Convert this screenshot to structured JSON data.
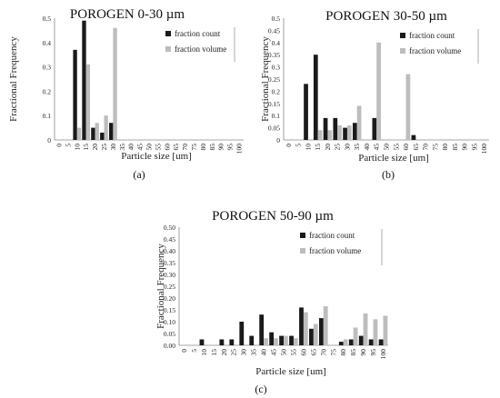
{
  "figure": {
    "captions": [
      "(a)",
      "(b)",
      "(c)"
    ]
  },
  "legend": {
    "count_label": "fraction count",
    "volume_label": "fraction volume"
  },
  "colors": {
    "count": "#1a1a1a",
    "volume": "#bdbdbd",
    "axis": "#888888"
  },
  "chart_data": [
    {
      "type": "bar",
      "title": "POROGEN 0-30 µm",
      "xlabel": "Particle size [um]",
      "ylabel": "Fractional Frequency",
      "ylim": [
        0,
        0.5
      ],
      "yticks": [
        "0",
        "0.1",
        "0.2",
        "0.3",
        "0.4",
        "0.5"
      ],
      "legend_position": "top-right",
      "categories": [
        "0",
        "5",
        "10",
        "15",
        "20",
        "25",
        "30",
        "35",
        "40",
        "45",
        "50",
        "55",
        "60",
        "65",
        "70",
        "75",
        "80",
        "85",
        "90",
        "95",
        "100"
      ],
      "series": [
        {
          "name": "fraction count",
          "values": [
            0,
            0,
            0.37,
            0.49,
            0.05,
            0.03,
            0.07,
            0,
            0,
            0,
            0,
            0,
            0,
            0,
            0,
            0,
            0,
            0,
            0,
            0,
            0
          ]
        },
        {
          "name": "fraction volume",
          "values": [
            0,
            0,
            0.05,
            0.31,
            0.07,
            0.1,
            0.46,
            0,
            0,
            0,
            0,
            0,
            0,
            0,
            0,
            0,
            0,
            0,
            0,
            0,
            0
          ]
        }
      ]
    },
    {
      "type": "bar",
      "title": "POROGEN 30-50 µm",
      "xlabel": "Particle size [um]",
      "ylabel": "Fractional Frequency",
      "ylim": [
        0,
        0.5
      ],
      "yticks": [
        "0",
        "0.05",
        "0.1",
        "0.15",
        "0.2",
        "0.25",
        "0.3",
        "0.35",
        "0.4",
        "0.45",
        "0.5"
      ],
      "legend_position": "top-right",
      "categories": [
        "0",
        "5",
        "10",
        "15",
        "20",
        "25",
        "30",
        "35",
        "40",
        "45",
        "50",
        "55",
        "60",
        "65",
        "70",
        "75",
        "80",
        "85",
        "90",
        "95",
        "100"
      ],
      "series": [
        {
          "name": "fraction count",
          "values": [
            0,
            0,
            0.23,
            0.35,
            0.09,
            0.09,
            0.05,
            0.07,
            0,
            0.09,
            0,
            0,
            0,
            0.02,
            0,
            0,
            0,
            0,
            0,
            0,
            0
          ]
        },
        {
          "name": "fraction volume",
          "values": [
            0,
            0,
            0,
            0.04,
            0.04,
            0.06,
            0.06,
            0.14,
            0,
            0.4,
            0,
            0,
            0.27,
            0,
            0,
            0,
            0,
            0,
            0,
            0,
            0
          ]
        }
      ]
    },
    {
      "type": "bar",
      "title": "POROGEN 50-90 µm",
      "xlabel": "Particle size [um]",
      "ylabel": "Fractional Frequency",
      "ylim": [
        0,
        0.5
      ],
      "yticks": [
        "0.00",
        "0.05",
        "0.10",
        "0.15",
        "0.20",
        "0.25",
        "0.30",
        "0.35",
        "0.40",
        "0.45",
        "0.50"
      ],
      "legend_position": "top-right",
      "categories": [
        "0",
        "5",
        "10",
        "15",
        "20",
        "25",
        "30",
        "35",
        "40",
        "45",
        "50",
        "55",
        "60",
        "65",
        "70",
        "75",
        "80",
        "85",
        "90",
        "95",
        "100"
      ],
      "series": [
        {
          "name": "fraction count",
          "values": [
            0,
            0,
            0.025,
            0,
            0.025,
            0.025,
            0.1,
            0.04,
            0.13,
            0.055,
            0.04,
            0.04,
            0.16,
            0.07,
            0.115,
            0,
            0.015,
            0.025,
            0.04,
            0.025,
            0.025
          ]
        },
        {
          "name": "fraction volume",
          "values": [
            0,
            0,
            0,
            0,
            0,
            0,
            0,
            0,
            0.03,
            0.03,
            0.04,
            0.03,
            0.14,
            0.09,
            0.165,
            0,
            0.025,
            0.075,
            0.135,
            0.11,
            0.125
          ]
        }
      ]
    }
  ]
}
